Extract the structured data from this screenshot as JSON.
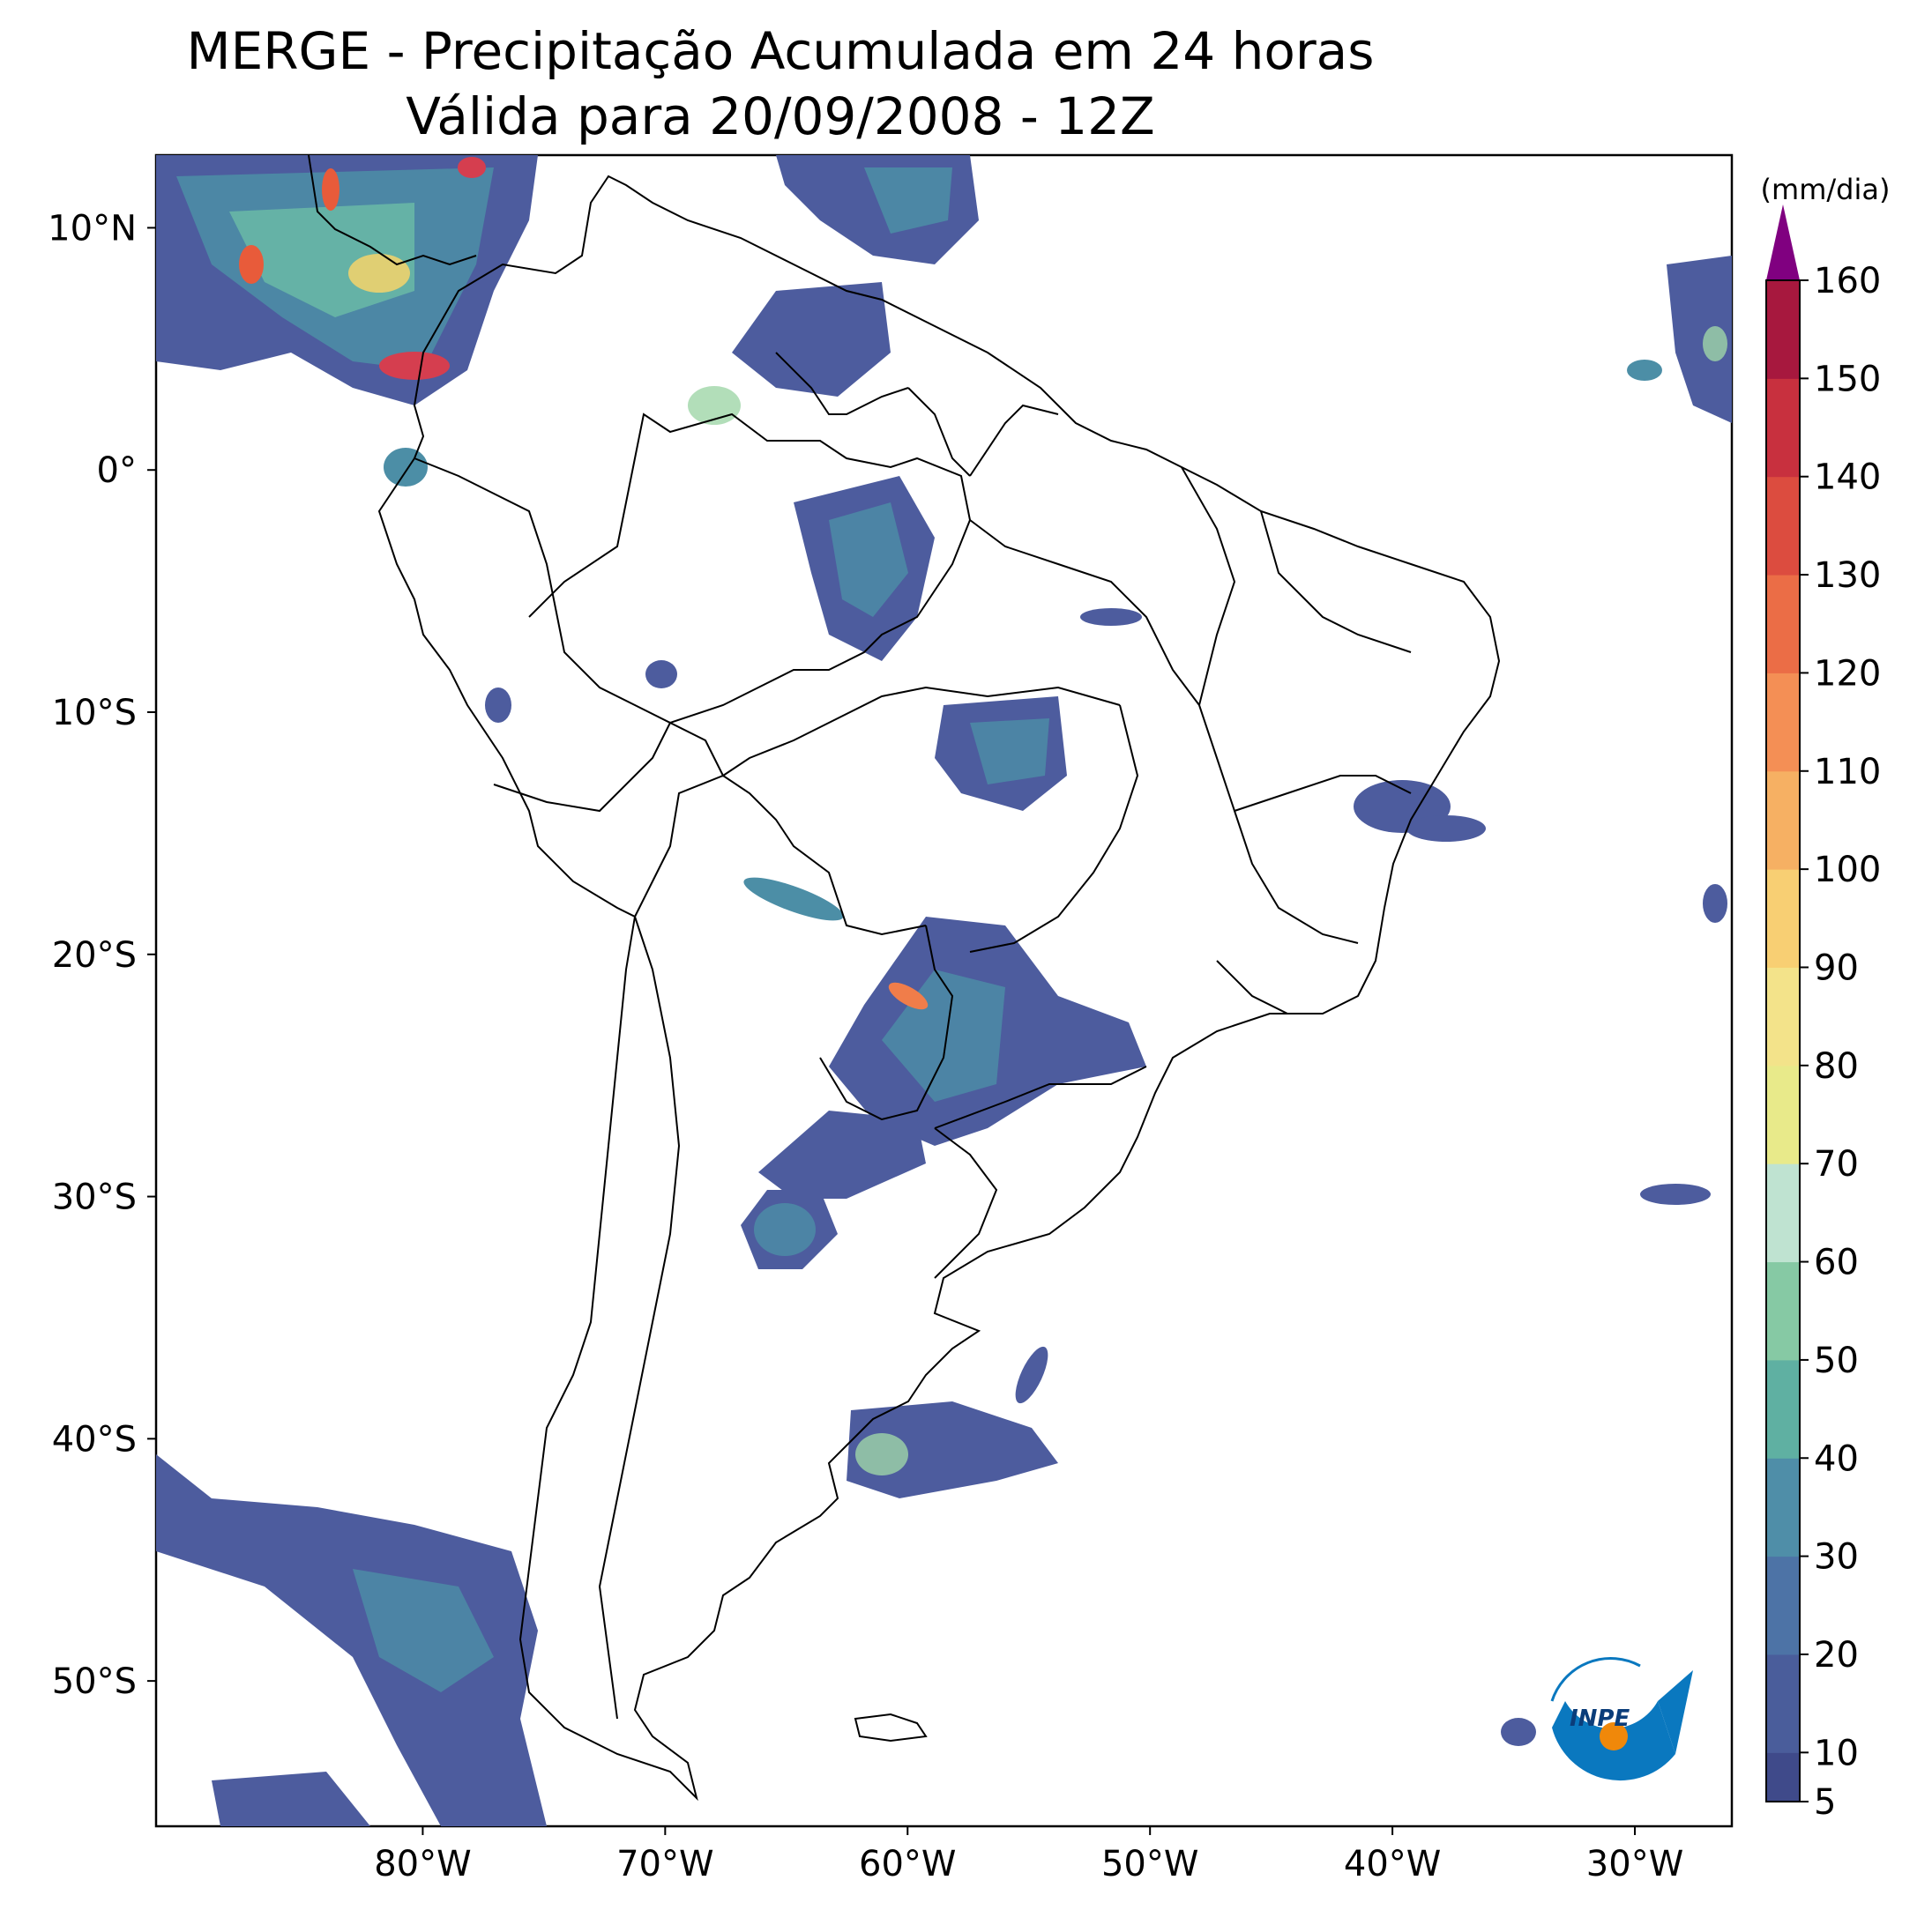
{
  "title_line1": "MERGE - Precipitação Acumulada em 24 horas",
  "title_line2": "Válida para 20/09/2008 - 12Z",
  "colorbar": {
    "unit": "(mm/dia)",
    "extend": "max",
    "tick_labels": [
      "5",
      "10",
      "20",
      "30",
      "40",
      "50",
      "60",
      "70",
      "80",
      "90",
      "100",
      "110",
      "120",
      "130",
      "140",
      "150",
      "160"
    ],
    "levels": [
      5,
      10,
      20,
      30,
      40,
      50,
      60,
      70,
      80,
      90,
      100,
      110,
      120,
      130,
      140,
      150,
      160
    ],
    "over_color": "#800080"
  },
  "lat_labels": [
    "10°N",
    "0°",
    "10°S",
    "20°S",
    "30°S",
    "40°S",
    "50°S"
  ],
  "lon_labels": [
    "80°W",
    "70°W",
    "60°W",
    "50°W",
    "40°W",
    "30°W"
  ],
  "logo": {
    "text": "INPE",
    "arrow_color": "#0a78bf",
    "dot_color": "#f0880a"
  }
}
